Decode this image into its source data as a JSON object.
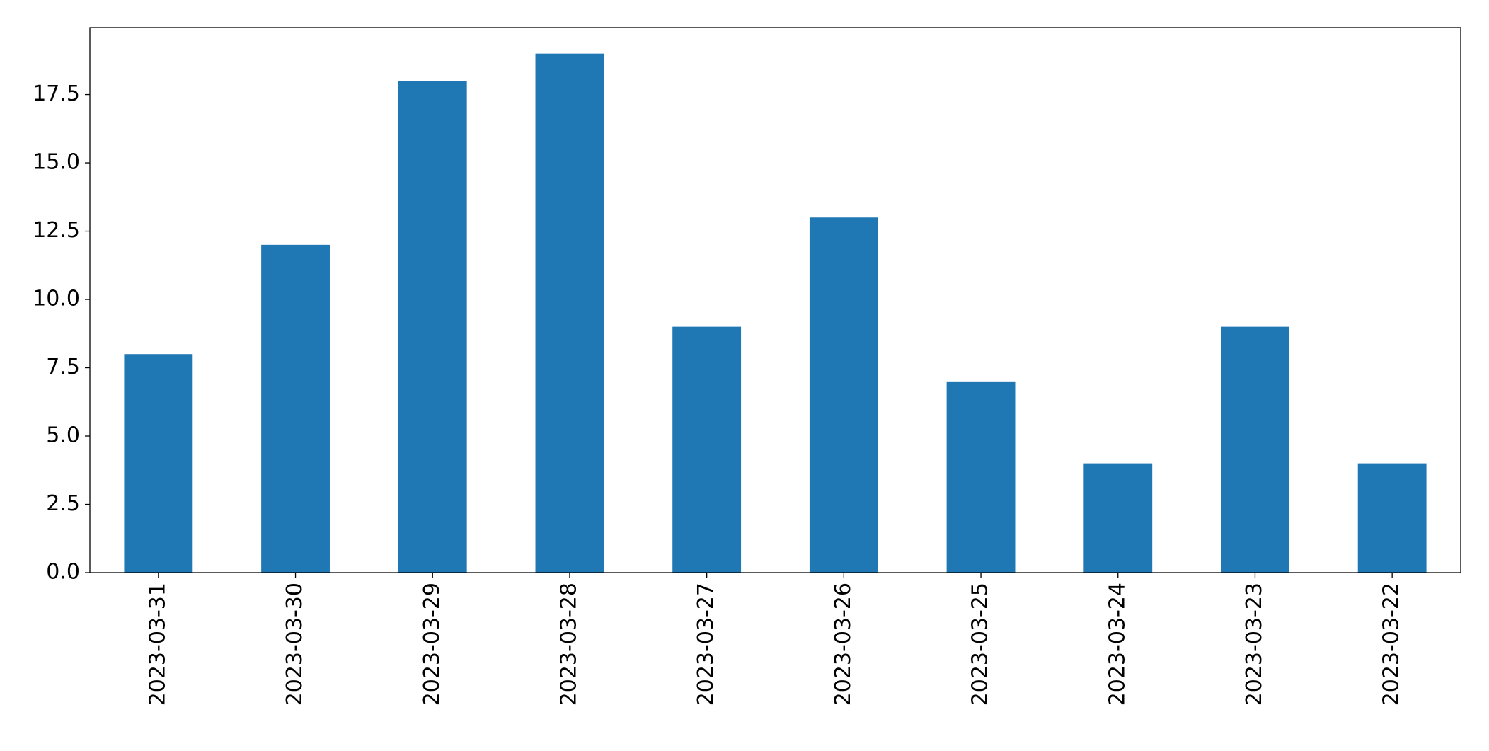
{
  "chart_data": {
    "type": "bar",
    "categories": [
      "2023-03-31",
      "2023-03-30",
      "2023-03-29",
      "2023-03-28",
      "2023-03-27",
      "2023-03-26",
      "2023-03-25",
      "2023-03-24",
      "2023-03-23",
      "2023-03-22"
    ],
    "values": [
      8,
      12,
      18,
      19,
      9,
      13,
      7,
      4,
      9,
      4
    ],
    "color": "#1f77b4",
    "ylim": [
      0,
      19.95
    ],
    "yticks": [
      {
        "value": 0,
        "label": "0.0"
      },
      2.5,
      {
        "value": 5,
        "label": "5.0"
      },
      7.5,
      {
        "value": 10,
        "label": "10.0"
      },
      12.5,
      {
        "value": 15,
        "label": "15.0"
      },
      17.5
    ],
    "grid": false
  }
}
